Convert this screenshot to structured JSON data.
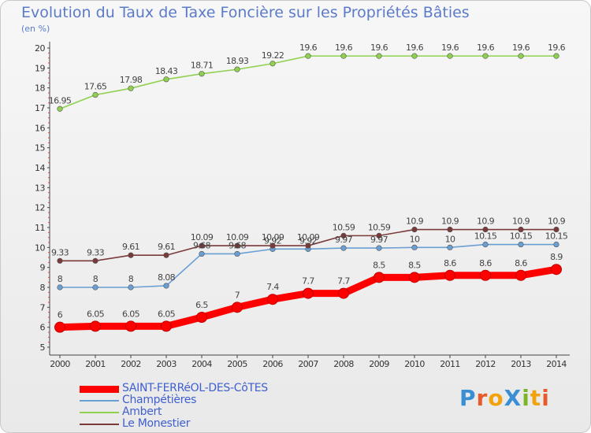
{
  "title": "Evolution du Taux de Taxe Foncière sur les Propriétés Bâties",
  "unit_label": "(en %)",
  "logo": {
    "text": "ProXiti",
    "letters": [
      "P",
      "r",
      "o",
      "X",
      "i",
      "t",
      "i"
    ],
    "colors": [
      "#3a8fd4",
      "#e85a2a",
      "#f2a20d",
      "#3a8fd4",
      "#7ab528",
      "#f2a20d",
      "#e85a2a"
    ]
  },
  "chart_data": {
    "type": "line",
    "title": "Evolution du Taux de Taxe Foncière sur les Propriétés Bâties",
    "ylabel": "(en %)",
    "xlabel": "",
    "x": [
      "2000",
      "2001",
      "2002",
      "2003",
      "2004",
      "2005",
      "2006",
      "2007",
      "2008",
      "2009",
      "2010",
      "2011",
      "2012",
      "2013",
      "2014"
    ],
    "ylim": [
      5,
      20
    ],
    "yticks": [
      5,
      6,
      7,
      8,
      9,
      10,
      11,
      12,
      13,
      14,
      15,
      16,
      17,
      18,
      19,
      20
    ],
    "grid": false,
    "legend_position": "bottom-left",
    "series": [
      {
        "name": "SAINT-FERRéOL-DES-CôTES",
        "color": "#ff0000",
        "emphasis": true,
        "values": [
          6,
          6.05,
          6.05,
          6.05,
          6.5,
          7,
          7.4,
          7.7,
          7.7,
          8.5,
          8.5,
          8.6,
          8.6,
          8.6,
          8.9
        ],
        "labels": [
          "6",
          "6.05",
          "6.05",
          "6.05",
          "6.5",
          "7",
          "7.4",
          "7.7",
          "7.7",
          "8.5",
          "8.5",
          "8.6",
          "8.6",
          "8.6",
          "8.9"
        ]
      },
      {
        "name": "Champétières",
        "color": "#6a9fd4",
        "emphasis": false,
        "values": [
          8,
          8,
          8,
          8.08,
          9.68,
          9.68,
          9.92,
          9.92,
          9.97,
          9.97,
          10,
          10,
          10.15,
          10.15,
          10.15
        ],
        "labels": [
          "8",
          "8",
          "8",
          "8.08",
          "9.68",
          "9.68",
          "9.92",
          "9.92",
          "9.97",
          "9.97",
          "10",
          "10",
          "10.15",
          "10.15",
          "10.15"
        ]
      },
      {
        "name": "Ambert",
        "color": "#8fd14f",
        "emphasis": false,
        "values": [
          16.95,
          17.65,
          17.98,
          18.43,
          18.71,
          18.93,
          19.22,
          19.6,
          19.6,
          19.6,
          19.6,
          19.6,
          19.6,
          19.6,
          19.6
        ],
        "labels": [
          "16.95",
          "17.65",
          "17.98",
          "18.43",
          "18.71",
          "18.93",
          "19.22",
          "19.6",
          "19.6",
          "19.6",
          "19.6",
          "19.6",
          "19.6",
          "19.6",
          "19.6"
        ]
      },
      {
        "name": "Le Monestier",
        "color": "#7a3a3a",
        "emphasis": false,
        "values": [
          9.33,
          9.33,
          9.61,
          9.61,
          10.09,
          10.09,
          10.09,
          10.09,
          10.59,
          10.59,
          10.9,
          10.9,
          10.9,
          10.9,
          10.9
        ],
        "labels": [
          "9.33",
          "9.33",
          "9.61",
          "9.61",
          "10.09",
          "10.09",
          "10.09",
          "10.09",
          "10.59",
          "10.59",
          "10.9",
          "10.9",
          "10.9",
          "10.9",
          "10.9"
        ]
      }
    ]
  }
}
